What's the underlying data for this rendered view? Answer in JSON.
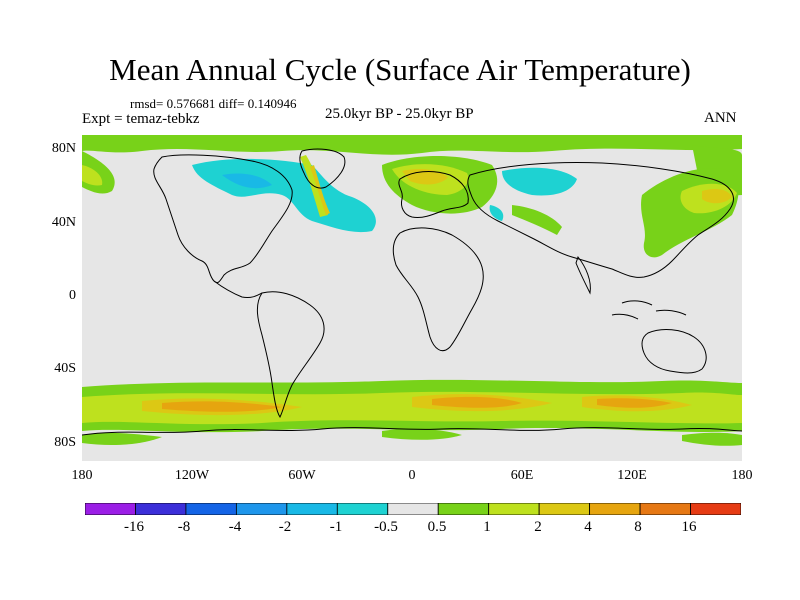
{
  "title": "Mean Annual Cycle (Surface Air Temperature)",
  "stats": "rmsd= 0.576681 diff= 0.140946",
  "experiment": "Expt = temaz-tebkz",
  "period": "25.0kyr BP - 25.0kyr BP",
  "season": "ANN",
  "lat_labels": [
    "80N",
    "40N",
    "0",
    "40S",
    "80S"
  ],
  "lon_labels": [
    "180",
    "120W",
    "60W",
    "0",
    "60E",
    "120E",
    "180"
  ],
  "colorbar": {
    "labels": [
      "-16",
      "-8",
      "-4",
      "-2",
      "-1",
      "-0.5",
      "0.5",
      "1",
      "2",
      "4",
      "8",
      "16"
    ],
    "colors": [
      "#9b1ee6",
      "#3c2fd9",
      "#1464e6",
      "#1e96eb",
      "#19b9e6",
      "#1ed2d2",
      "#e6e6e6",
      "#78d219",
      "#bee11e",
      "#dcc814",
      "#e6a50f",
      "#e67814",
      "#e63c14"
    ]
  }
}
